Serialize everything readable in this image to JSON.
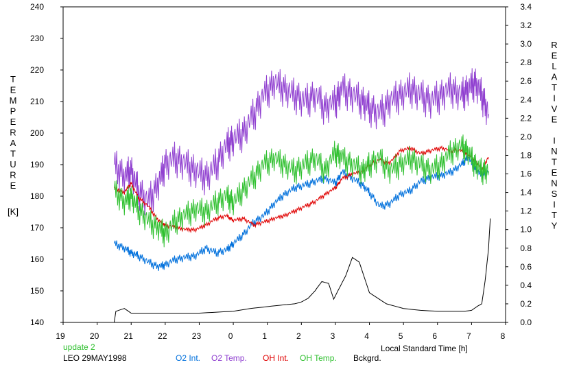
{
  "chart_data": {
    "type": "line",
    "title": "",
    "status_text": "update 2",
    "station_label": "LEO 29MAY1998",
    "xlabel": "Local Standard Time [h]",
    "ylabel_left_letters": [
      "T",
      "E",
      "M",
      "P",
      "E",
      "R",
      "A",
      "T",
      "U",
      "R",
      "E"
    ],
    "ylabel_left_unit": "[K]",
    "ylabel_right_letters": [
      "R",
      "E",
      "L",
      "A",
      "T",
      "I",
      "V",
      "E",
      "",
      "I",
      "N",
      "T",
      "E",
      "N",
      "S",
      "I",
      "T",
      "Y"
    ],
    "x_ticks": [
      "19",
      "20",
      "21",
      "22",
      "23",
      "0",
      "1",
      "2",
      "3",
      "4",
      "5",
      "6",
      "7",
      "8"
    ],
    "y_left_ticks": [
      "140",
      "150",
      "160",
      "170",
      "180",
      "190",
      "200",
      "210",
      "220",
      "230",
      "240"
    ],
    "y_right_ticks": [
      "0.0",
      "0.2",
      "0.4",
      "0.6",
      "0.8",
      "1.0",
      "1.2",
      "1.4",
      "1.6",
      "1.8",
      "2.0",
      "2.2",
      "2.4",
      "2.6",
      "2.8",
      "3.0",
      "3.2",
      "3.4"
    ],
    "xlim": [
      19,
      32
    ],
    "ylim_left": [
      140,
      240
    ],
    "ylim_right": [
      0,
      3.4
    ],
    "series": [
      {
        "name": "O2 Int.",
        "axis": "right",
        "color": "#0070dc",
        "x": [
          20.5,
          20.8,
          21.0,
          21.2,
          21.5,
          21.8,
          22.0,
          22.3,
          22.6,
          22.9,
          23.2,
          23.5,
          23.8,
          24.0,
          24.3,
          24.6,
          24.9,
          25.2,
          25.5,
          25.8,
          26.1,
          26.4,
          26.7,
          27.0,
          27.2,
          27.5,
          27.8,
          28.0,
          28.3,
          28.6,
          28.9,
          29.2,
          29.5,
          29.8,
          30.1,
          30.4,
          30.7,
          30.9,
          31.1,
          31.3,
          31.5
        ],
        "y": [
          0.85,
          0.8,
          0.75,
          0.72,
          0.65,
          0.6,
          0.62,
          0.68,
          0.7,
          0.72,
          0.8,
          0.75,
          0.78,
          0.85,
          0.95,
          1.08,
          1.15,
          1.28,
          1.38,
          1.45,
          1.48,
          1.52,
          1.55,
          1.5,
          1.62,
          1.55,
          1.48,
          1.4,
          1.25,
          1.28,
          1.38,
          1.42,
          1.52,
          1.56,
          1.58,
          1.62,
          1.7,
          1.78,
          1.65,
          1.58,
          1.62
        ]
      },
      {
        "name": "O2 Temp.",
        "axis": "left",
        "color": "#9040d0",
        "x": [
          20.5,
          20.8,
          21.0,
          21.2,
          21.5,
          21.8,
          22.0,
          22.3,
          22.6,
          22.9,
          23.2,
          23.5,
          23.8,
          24.0,
          24.3,
          24.6,
          24.9,
          25.2,
          25.5,
          25.8,
          26.1,
          26.4,
          26.7,
          27.0,
          27.2,
          27.5,
          27.8,
          28.0,
          28.3,
          28.6,
          28.9,
          29.2,
          29.5,
          29.8,
          30.1,
          30.4,
          30.7,
          30.9,
          31.1,
          31.3,
          31.5
        ],
        "y": [
          190,
          186,
          188,
          182,
          178,
          184,
          190,
          192,
          190,
          188,
          186,
          190,
          196,
          198,
          200,
          206,
          212,
          216,
          214,
          212,
          210,
          212,
          208,
          210,
          214,
          212,
          210,
          208,
          206,
          210,
          212,
          214,
          212,
          210,
          212,
          214,
          212,
          214,
          216,
          212,
          206
        ]
      },
      {
        "name": "OH Int.",
        "axis": "right",
        "color": "#e00000",
        "x": [
          20.5,
          20.8,
          21.0,
          21.2,
          21.5,
          21.8,
          22.0,
          22.3,
          22.6,
          22.9,
          23.2,
          23.5,
          23.8,
          24.0,
          24.3,
          24.6,
          24.9,
          25.2,
          25.5,
          25.8,
          26.1,
          26.4,
          26.7,
          27.0,
          27.2,
          27.5,
          27.8,
          28.0,
          28.3,
          28.6,
          28.9,
          29.2,
          29.5,
          29.8,
          30.1,
          30.4,
          30.7,
          30.9,
          31.1,
          31.3,
          31.5
        ],
        "y": [
          1.45,
          1.4,
          1.5,
          1.35,
          1.25,
          1.1,
          1.05,
          1.02,
          1.0,
          1.0,
          1.05,
          1.12,
          1.15,
          1.1,
          1.12,
          1.05,
          1.08,
          1.12,
          1.15,
          1.2,
          1.25,
          1.3,
          1.38,
          1.45,
          1.55,
          1.6,
          1.62,
          1.7,
          1.75,
          1.72,
          1.85,
          1.88,
          1.82,
          1.85,
          1.88,
          1.85,
          1.85,
          1.8,
          1.75,
          1.65,
          1.78
        ]
      },
      {
        "name": "OH Temp.",
        "axis": "left",
        "color": "#30c030",
        "x": [
          20.5,
          20.8,
          21.0,
          21.2,
          21.5,
          21.8,
          22.0,
          22.3,
          22.6,
          22.9,
          23.2,
          23.5,
          23.8,
          24.0,
          24.3,
          24.6,
          24.9,
          25.2,
          25.5,
          25.8,
          26.1,
          26.4,
          26.7,
          27.0,
          27.2,
          27.5,
          27.8,
          28.0,
          28.3,
          28.6,
          28.9,
          29.2,
          29.5,
          29.8,
          30.1,
          30.4,
          30.7,
          30.9,
          31.1,
          31.3,
          31.5
        ],
        "y": [
          182,
          178,
          180,
          176,
          172,
          170,
          168,
          172,
          174,
          176,
          175,
          178,
          180,
          178,
          182,
          186,
          190,
          192,
          190,
          188,
          190,
          192,
          188,
          194,
          192,
          190,
          188,
          190,
          192,
          188,
          190,
          192,
          190,
          188,
          190,
          194,
          196,
          194,
          190,
          188,
          188
        ]
      },
      {
        "name": "Bckgrd.",
        "axis": "right",
        "color": "#000000",
        "x": [
          19.7,
          20.5,
          20.55,
          20.8,
          21.0,
          21.5,
          22.0,
          22.5,
          23.0,
          23.5,
          24.0,
          24.5,
          25.0,
          25.5,
          25.8,
          26.0,
          26.2,
          26.4,
          26.6,
          26.8,
          26.95,
          27.1,
          27.3,
          27.5,
          27.7,
          28.0,
          28.5,
          29.0,
          29.5,
          30.0,
          30.5,
          30.8,
          31.0,
          31.2,
          31.3,
          31.4,
          31.5,
          31.55
        ],
        "y": [
          0.0,
          0.0,
          0.12,
          0.15,
          0.1,
          0.1,
          0.1,
          0.1,
          0.1,
          0.11,
          0.12,
          0.15,
          0.17,
          0.19,
          0.2,
          0.22,
          0.26,
          0.34,
          0.44,
          0.42,
          0.25,
          0.36,
          0.5,
          0.7,
          0.65,
          0.32,
          0.2,
          0.15,
          0.13,
          0.12,
          0.12,
          0.12,
          0.13,
          0.18,
          0.2,
          0.45,
          0.8,
          1.12
        ]
      }
    ],
    "legend_position": "bottom",
    "grid": false
  }
}
